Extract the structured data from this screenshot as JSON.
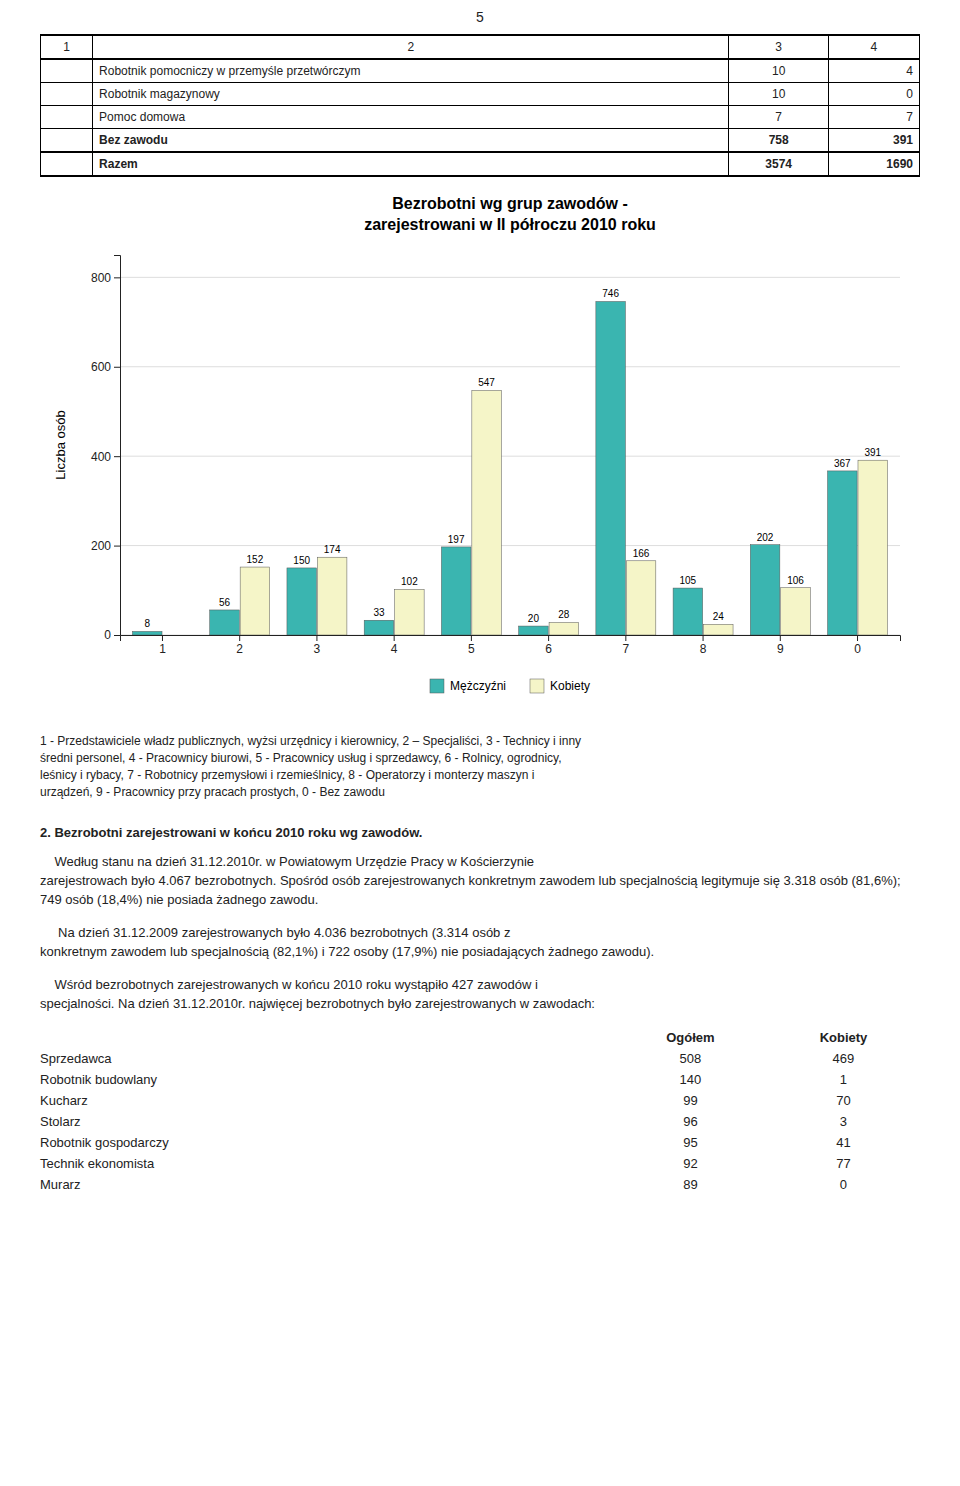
{
  "page_number": "5",
  "table": {
    "headers": [
      "1",
      "2",
      "3",
      "4"
    ],
    "rows": [
      {
        "bold": false,
        "name": "Robotnik pomocniczy w przemyśle przetwórczym",
        "values": [
          10,
          4
        ]
      },
      {
        "bold": false,
        "name": "Robotnik magazynowy",
        "values": [
          10,
          0
        ]
      },
      {
        "bold": false,
        "name": "Pomoc domowa",
        "values": [
          7,
          7
        ]
      },
      {
        "bold": true,
        "name": "Bez zawodu",
        "values": [
          758,
          391
        ]
      },
      {
        "bold": true,
        "name": "Razem",
        "values": [
          3574,
          1690
        ]
      }
    ]
  },
  "chart_data": {
    "type": "bar",
    "title": "Bezrobotni wg grup zawodów -\nzarejestrowani w II półroczu 2010 roku",
    "categories": [
      "1",
      "2",
      "3",
      "4",
      "5",
      "6",
      "7",
      "8",
      "9",
      "0"
    ],
    "series": [
      {
        "name": "Mężczyźni",
        "color": "#3ab5b0",
        "values": [
          8,
          56,
          150,
          33,
          197,
          20,
          746,
          105,
          202,
          367
        ]
      },
      {
        "name": "Kobiety",
        "color": "#f5f5c8",
        "values": [
          0,
          152,
          174,
          102,
          547,
          28,
          166,
          24,
          106,
          391
        ]
      }
    ],
    "ylabel": "Liczba osób",
    "ylim": [
      0,
      850
    ],
    "yticks": [
      0,
      200,
      400,
      600,
      800
    ],
    "grid": true,
    "data_labels": true,
    "legend": "bottom"
  },
  "notes": [
    "1 - Przedstawiciele władz publicznych, wyżsi urzędnicy i kierownicy, 2 – Specjaliści, 3 - Technicy i inny",
    "średni personel, 4 - Pracownicy biurowi, 5 - Pracownicy usług i sprzedawcy, 6 - Rolnicy, ogrodnicy,",
    "leśnicy i rybacy, 7 - Robotnicy przemysłowi i rzemieślnicy, 8 - Operatorzy i monterzy maszyn i",
    "urządzeń, 9 - Pracownicy przy pracach prostych, 0 - Bez zawodu"
  ],
  "section": {
    "title": "2. Bezrobotni zarejestrowani w końcu 2010 roku wg zawodów.",
    "paragraphs": [
      {
        "indent": "    Według stanu na dzień 31.12.2010r. w Powiatowym Urzędzie Pracy w Kościerzynie",
        "rest": "zarejestrowach było 4.067 bezrobotnych. Spośród osób zarejestrowanych konkretnym zawodem lub specjalnością legitymuje się 3.318 osób (81,6%); 749 osób (18,4%) nie posiada żadnego zawodu."
      },
      {
        "indent": "     Na dzień 31.12.2009 zarejestrowanych było 4.036 bezrobotnych (3.314 osób z",
        "rest": "konkretnym zawodem lub specjalnością (82,1%) i 722 osoby (17,9%) nie posiadających żadnego zawodu)."
      },
      {
        "indent": "    Wśród bezrobotnych zarejestrowanych w końcu 2010 roku wystąpiło 427 zawodów i",
        "rest": "specjalności. Na dzień 31.12.2010r. najwięcej bezrobotnych było zarejestrowanych w zawodach:"
      }
    ]
  },
  "zawody": {
    "headers": [
      "Ogółem",
      "Kobiety"
    ],
    "rows": [
      {
        "name": "Sprzedawca",
        "values": [
          508,
          469
        ]
      },
      {
        "name": "Robotnik budowlany",
        "values": [
          140,
          1
        ]
      },
      {
        "name": "Kucharz",
        "values": [
          99,
          70
        ]
      },
      {
        "name": "Stolarz",
        "values": [
          96,
          3
        ]
      },
      {
        "name": "Robotnik gospodarczy",
        "values": [
          95,
          41
        ]
      },
      {
        "name": "Technik ekonomista",
        "values": [
          92,
          77
        ]
      },
      {
        "name": "Murarz",
        "values": [
          89,
          0
        ]
      }
    ]
  }
}
